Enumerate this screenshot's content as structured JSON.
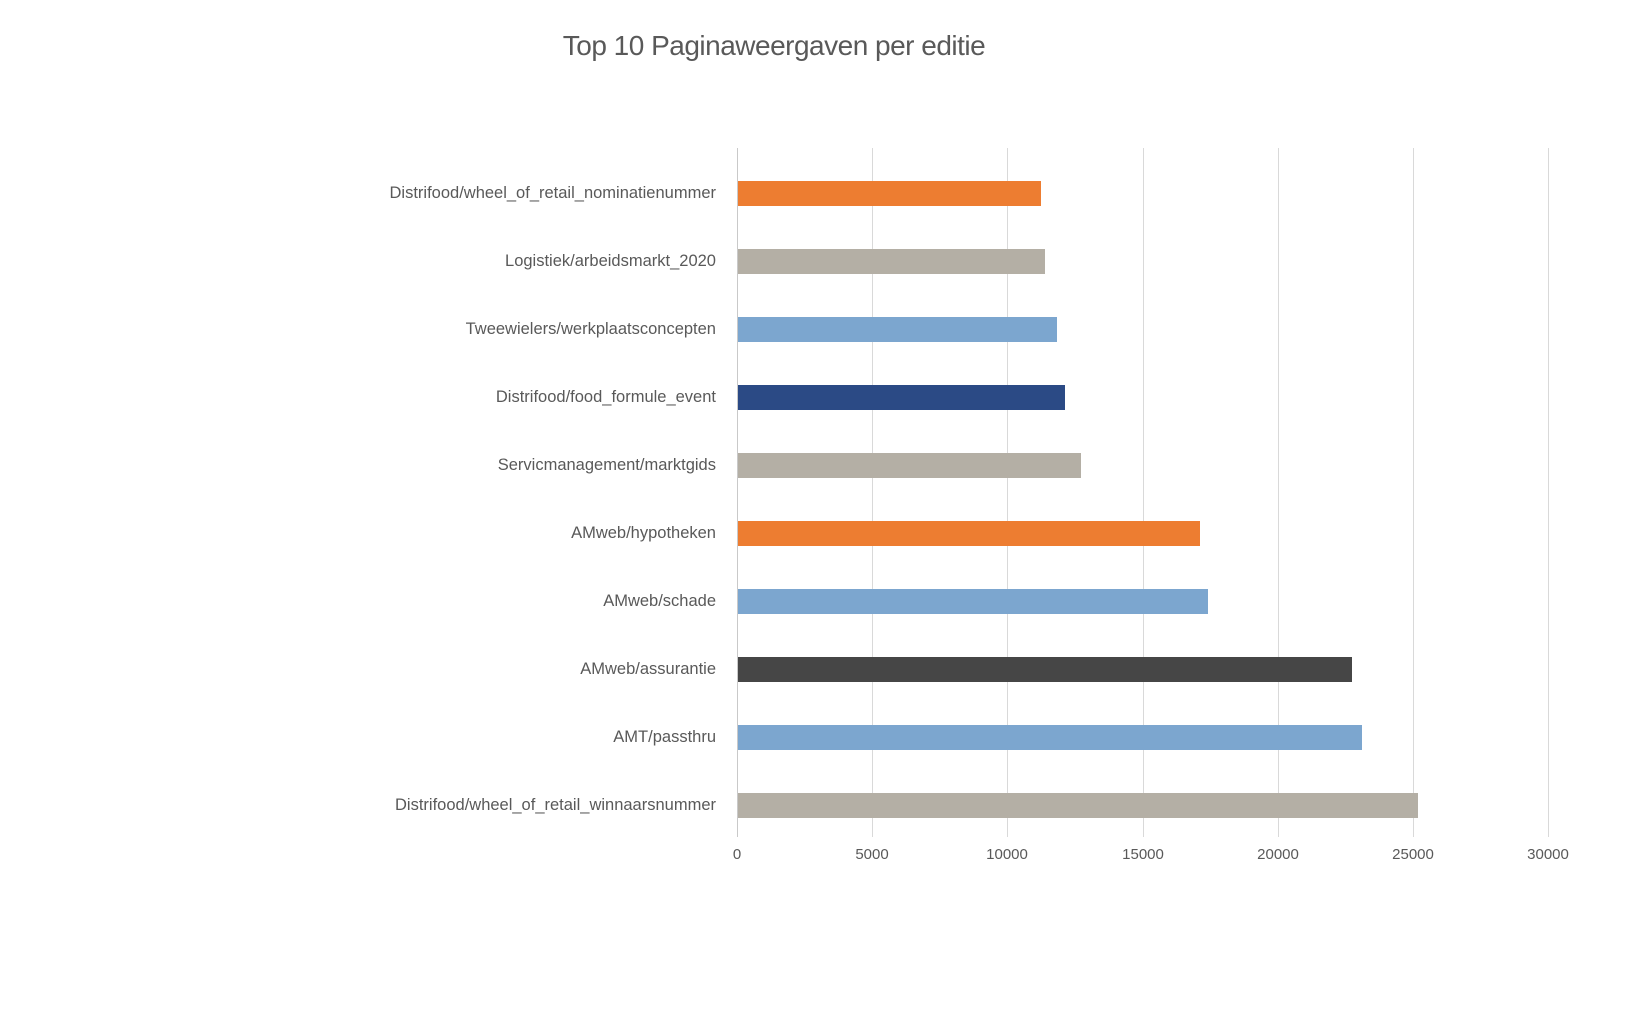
{
  "title": "Top 10 Paginaweergaven per editie",
  "palette": {
    "orange": "#ED7D31",
    "tan": "#B4AFA5",
    "lightblue": "#7CA6CF",
    "navy": "#2B4A85",
    "charcoal": "#464646",
    "gridline": "#D9D9D9",
    "text": "#595959",
    "background": "#FFFFFF"
  },
  "chart_data": {
    "type": "bar",
    "orientation": "horizontal",
    "title": "Top 10 Paginaweergaven per editie",
    "xlabel": "",
    "ylabel": "",
    "xlim": [
      0,
      30000
    ],
    "x_ticks": [
      0,
      5000,
      10000,
      15000,
      20000,
      25000,
      30000
    ],
    "grid": true,
    "legend": false,
    "categories": [
      "Distrifood/wheel_of_retail_nominatienummer",
      "Logistiek/arbeidsmarkt_2020",
      "Tweewielers/werkplaatsconcepten",
      "Distrifood/food_formule_event",
      "Servicmanagement/marktgids",
      "AMweb/hypotheken",
      "AMweb/schade",
      "AMweb/assurantie",
      "AMT/passthru",
      "Distrifood/wheel_of_retail_winnaarsnummer"
    ],
    "values": [
      11200,
      11350,
      11800,
      12100,
      12700,
      17100,
      17400,
      22700,
      23100,
      25150
    ],
    "bar_colors": [
      "orange",
      "tan",
      "lightblue",
      "navy",
      "tan",
      "orange",
      "lightblue",
      "charcoal",
      "lightblue",
      "tan"
    ]
  }
}
